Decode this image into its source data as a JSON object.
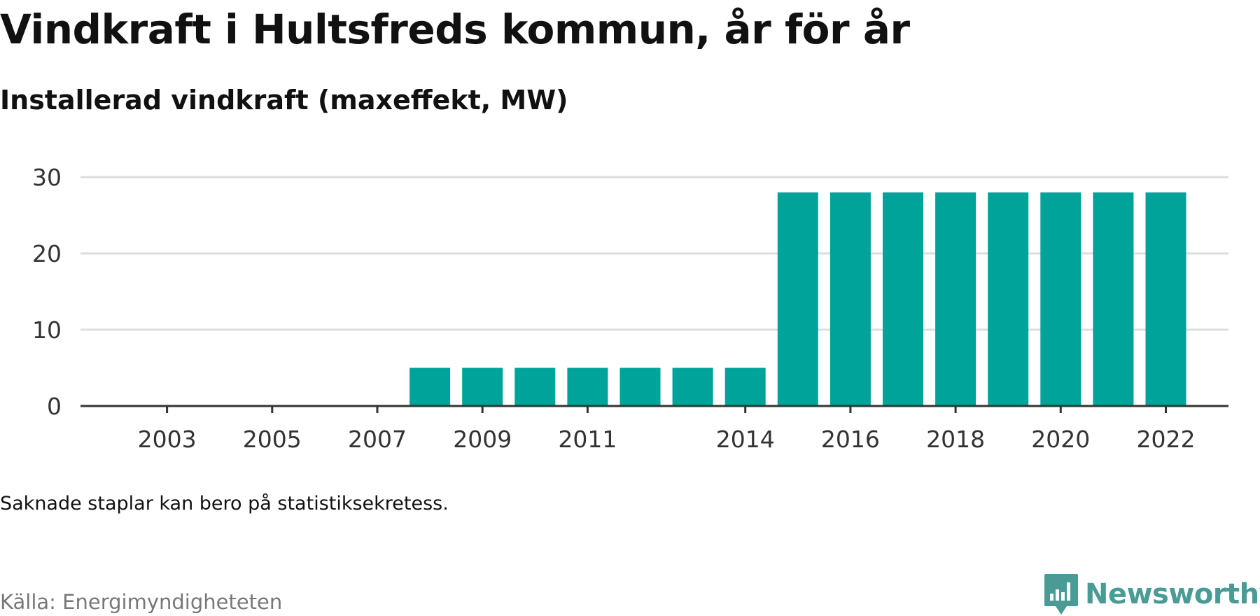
{
  "title": "Vindkraft i Hultsfreds kommun, år för år",
  "subtitle": "Installerad vindkraft (maxeffekt, MW)",
  "note": "Saknade staplar kan bero på statistiksekretess.",
  "source": "Källa: Energimyndigheteten",
  "brand": "Newsworthy",
  "colors": {
    "bar": "#00a39a",
    "grid": "#dddddd",
    "axis": "#333333",
    "brand": "#4a9b95"
  },
  "chart_data": {
    "type": "bar",
    "categories": [
      "2002",
      "2003",
      "2004",
      "2005",
      "2006",
      "2007",
      "2008",
      "2009",
      "2010",
      "2011",
      "2012",
      "2013",
      "2014",
      "2015",
      "2016",
      "2017",
      "2018",
      "2019",
      "2020",
      "2021",
      "2022"
    ],
    "values": [
      0,
      0,
      0,
      0,
      0,
      0,
      5,
      5,
      5,
      5,
      5,
      5,
      5,
      28,
      28,
      28,
      28,
      28,
      28,
      28,
      28
    ],
    "x_tick_labels": [
      "2003",
      "2005",
      "2007",
      "2009",
      "2011",
      "2014",
      "2016",
      "2018",
      "2020",
      "2022"
    ],
    "y_ticks": [
      0,
      10,
      20,
      30
    ],
    "ylim": [
      0,
      30
    ],
    "grid": true,
    "xlabel": "",
    "ylabel": "",
    "title": "Vindkraft i Hultsfreds kommun, år för år",
    "subtitle": "Installerad vindkraft (maxeffekt, MW)"
  }
}
